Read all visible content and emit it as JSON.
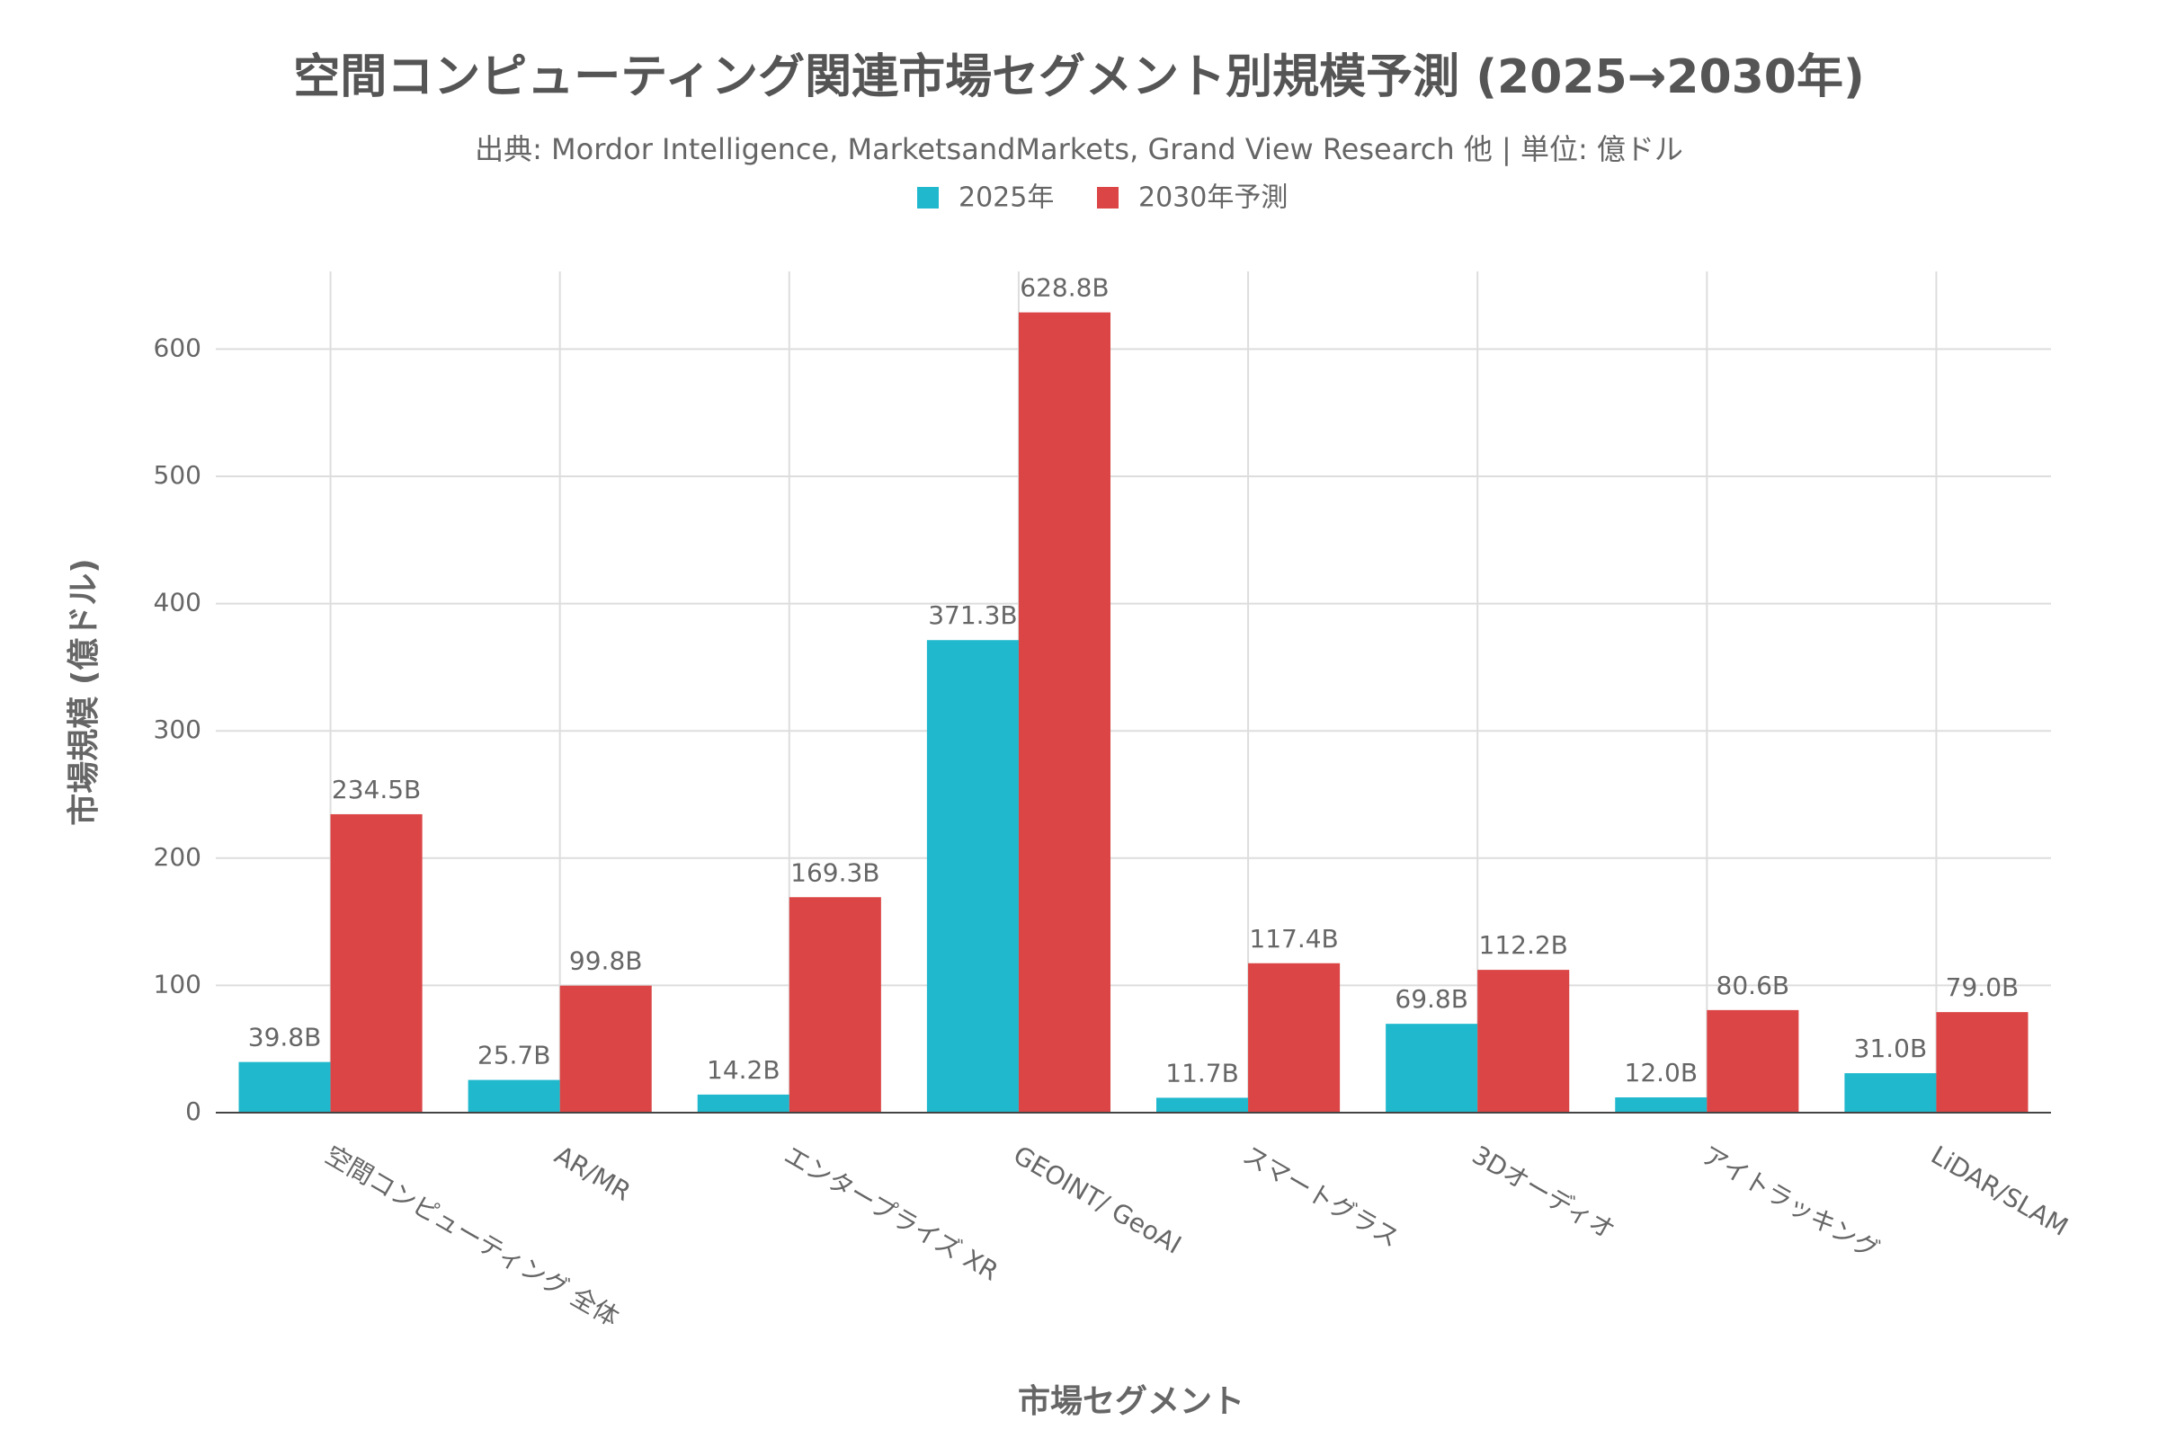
{
  "chart_data": {
    "type": "bar",
    "title": "空間コンピューティング関連市場セグメント別規模予測 (2025→2030年)",
    "subtitle": "出典: Mordor Intelligence, MarketsandMarkets, Grand View Research 他 | 単位: 億ドル",
    "x_label": "市場セグメント",
    "y_label": "市場規模 (億ドル)",
    "categories": [
      "空間コンピューティング 全体",
      "AR/MR",
      "エンタープライズ XR",
      "GEOINT/ GeoAI",
      "スマートグラス",
      "3Dオーディオ",
      "アイトラッキング",
      "LiDAR/SLAM"
    ],
    "series": [
      {
        "name": "2025年",
        "color": "#1fb8cd",
        "values": [
          39.8,
          25.7,
          14.2,
          371.3,
          11.7,
          69.8,
          12.0,
          31.0
        ],
        "value_labels": [
          "39.8B",
          "25.7B",
          "14.2B",
          "371.3B",
          "11.7B",
          "69.8B",
          "12.0B",
          "31.0B"
        ]
      },
      {
        "name": "2030年予測",
        "color": "#db4545",
        "values": [
          234.5,
          99.8,
          169.3,
          628.8,
          117.4,
          112.2,
          80.6,
          79.0
        ],
        "value_labels": [
          "234.5B",
          "99.8B",
          "169.3B",
          "628.8B",
          "117.4B",
          "112.2B",
          "80.6B",
          "79.0B"
        ]
      }
    ],
    "ylim": [
      0,
      661
    ],
    "yticks": [
      0,
      100,
      200,
      300,
      400,
      500,
      600
    ],
    "grid": true
  }
}
